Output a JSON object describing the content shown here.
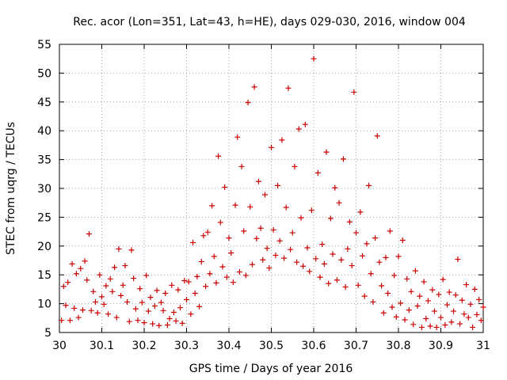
{
  "chart_data": {
    "type": "scatter",
    "title": "Rec. acor (Lon=351, Lat=43, h=HE), days 029-030, 2016, window 004",
    "xlabel": "GPS time / Days of year 2016",
    "ylabel": "STEC from uqrg / TECUs",
    "xlim": [
      30,
      31
    ],
    "ylim": [
      5,
      55
    ],
    "xticks": [
      "30",
      "30.1",
      "30.2",
      "30.3",
      "30.4",
      "30.5",
      "30.6",
      "30.7",
      "30.8",
      "30.9",
      "31"
    ],
    "yticks": [
      "5",
      "10",
      "15",
      "20",
      "25",
      "30",
      "35",
      "40",
      "45",
      "50",
      "55"
    ],
    "grid": true,
    "marker": "+",
    "color": "#cc0000",
    "series": [
      {
        "points": [
          [
            30.005,
            7.1
          ],
          [
            30.01,
            13.0
          ],
          [
            30.015,
            9.7
          ],
          [
            30.02,
            13.7
          ],
          [
            30.025,
            7.1
          ],
          [
            30.03,
            16.9
          ],
          [
            30.035,
            9.2
          ],
          [
            30.04,
            15.2
          ],
          [
            30.045,
            7.6
          ],
          [
            30.05,
            16.1
          ],
          [
            30.055,
            8.9
          ],
          [
            30.06,
            17.4
          ],
          [
            30.065,
            14.1
          ],
          [
            30.07,
            22.1
          ],
          [
            30.075,
            8.8
          ],
          [
            30.08,
            12.1
          ],
          [
            30.085,
            10.3
          ],
          [
            30.09,
            8.4
          ],
          [
            30.095,
            15.0
          ],
          [
            30.1,
            11.2
          ],
          [
            30.105,
            9.9
          ],
          [
            30.11,
            13.1
          ],
          [
            30.115,
            8.2
          ],
          [
            30.12,
            14.3
          ],
          [
            30.125,
            12.1
          ],
          [
            30.13,
            16.3
          ],
          [
            30.135,
            7.6
          ],
          [
            30.14,
            19.5
          ],
          [
            30.145,
            11.4
          ],
          [
            30.15,
            13.2
          ],
          [
            30.155,
            16.6
          ],
          [
            30.16,
            10.3
          ],
          [
            30.165,
            6.9
          ],
          [
            30.17,
            19.3
          ],
          [
            30.175,
            14.4
          ],
          [
            30.18,
            9.1
          ],
          [
            30.185,
            7.1
          ],
          [
            30.19,
            12.6
          ],
          [
            30.195,
            10.2
          ],
          [
            30.2,
            6.7
          ],
          [
            30.205,
            14.9
          ],
          [
            30.21,
            8.7
          ],
          [
            30.215,
            11.1
          ],
          [
            30.22,
            6.5
          ],
          [
            30.225,
            9.6
          ],
          [
            30.23,
            12.3
          ],
          [
            30.235,
            6.2
          ],
          [
            30.24,
            10.2
          ],
          [
            30.245,
            8.8
          ],
          [
            30.25,
            11.8
          ],
          [
            30.255,
            6.3
          ],
          [
            30.26,
            7.4
          ],
          [
            30.265,
            13.2
          ],
          [
            30.27,
            8.5
          ],
          [
            30.275,
            7.0
          ],
          [
            30.28,
            12.4
          ],
          [
            30.285,
            9.3
          ],
          [
            30.29,
            6.6
          ],
          [
            30.295,
            14.0
          ],
          [
            30.3,
            10.7
          ],
          [
            30.305,
            13.8
          ],
          [
            30.31,
            8.2
          ],
          [
            30.315,
            20.6
          ],
          [
            30.32,
            11.8
          ],
          [
            30.325,
            14.7
          ],
          [
            30.33,
            9.5
          ],
          [
            30.335,
            17.3
          ],
          [
            30.34,
            21.8
          ],
          [
            30.345,
            13.0
          ],
          [
            30.35,
            22.4
          ],
          [
            30.355,
            15.2
          ],
          [
            30.36,
            27.0
          ],
          [
            30.365,
            18.2
          ],
          [
            30.37,
            13.6
          ],
          [
            30.375,
            35.6
          ],
          [
            30.38,
            24.1
          ],
          [
            30.385,
            16.4
          ],
          [
            30.39,
            30.2
          ],
          [
            30.395,
            14.6
          ],
          [
            30.4,
            21.4
          ],
          [
            30.405,
            18.8
          ],
          [
            30.41,
            13.7
          ],
          [
            30.415,
            27.1
          ],
          [
            30.42,
            38.9
          ],
          [
            30.425,
            15.5
          ],
          [
            30.43,
            33.8
          ],
          [
            30.435,
            22.6
          ],
          [
            30.44,
            14.9
          ],
          [
            30.445,
            44.9
          ],
          [
            30.45,
            26.8
          ],
          [
            30.455,
            16.8
          ],
          [
            30.46,
            47.6
          ],
          [
            30.465,
            21.3
          ],
          [
            30.47,
            31.2
          ],
          [
            30.475,
            23.1
          ],
          [
            30.48,
            17.6
          ],
          [
            30.485,
            28.9
          ],
          [
            30.49,
            19.6
          ],
          [
            30.495,
            16.2
          ],
          [
            30.5,
            37.1
          ],
          [
            30.505,
            22.8
          ],
          [
            30.51,
            18.4
          ],
          [
            30.515,
            30.5
          ],
          [
            30.52,
            20.9
          ],
          [
            30.525,
            38.4
          ],
          [
            30.53,
            17.9
          ],
          [
            30.535,
            26.7
          ],
          [
            30.54,
            47.4
          ],
          [
            30.545,
            19.4
          ],
          [
            30.55,
            22.3
          ],
          [
            30.555,
            33.8
          ],
          [
            30.56,
            17.2
          ],
          [
            30.565,
            40.3
          ],
          [
            30.57,
            24.9
          ],
          [
            30.575,
            16.5
          ],
          [
            30.58,
            41.1
          ],
          [
            30.585,
            19.7
          ],
          [
            30.59,
            15.6
          ],
          [
            30.595,
            26.2
          ],
          [
            30.6,
            52.5
          ],
          [
            30.605,
            17.8
          ],
          [
            30.61,
            32.7
          ],
          [
            30.615,
            14.6
          ],
          [
            30.62,
            20.3
          ],
          [
            30.625,
            16.9
          ],
          [
            30.63,
            36.3
          ],
          [
            30.635,
            13.5
          ],
          [
            30.64,
            24.8
          ],
          [
            30.645,
            18.6
          ],
          [
            30.65,
            30.1
          ],
          [
            30.655,
            14.1
          ],
          [
            30.66,
            27.5
          ],
          [
            30.665,
            17.6
          ],
          [
            30.67,
            35.1
          ],
          [
            30.675,
            12.9
          ],
          [
            30.68,
            19.5
          ],
          [
            30.685,
            24.2
          ],
          [
            30.69,
            16.6
          ],
          [
            30.695,
            46.7
          ],
          [
            30.7,
            22.3
          ],
          [
            30.705,
            13.2
          ],
          [
            30.71,
            25.9
          ],
          [
            30.715,
            18.3
          ],
          [
            30.72,
            11.3
          ],
          [
            30.725,
            20.4
          ],
          [
            30.73,
            30.5
          ],
          [
            30.735,
            15.2
          ],
          [
            30.74,
            10.3
          ],
          [
            30.745,
            21.4
          ],
          [
            30.75,
            39.1
          ],
          [
            30.755,
            17.2
          ],
          [
            30.76,
            13.1
          ],
          [
            30.765,
            8.4
          ],
          [
            30.77,
            18.0
          ],
          [
            30.775,
            11.8
          ],
          [
            30.78,
            22.6
          ],
          [
            30.785,
            9.4
          ],
          [
            30.79,
            14.9
          ],
          [
            30.795,
            7.7
          ],
          [
            30.8,
            18.2
          ],
          [
            30.805,
            10.1
          ],
          [
            30.81,
            21.0
          ],
          [
            30.815,
            7.2
          ],
          [
            30.82,
            14.3
          ],
          [
            30.825,
            8.9
          ],
          [
            30.83,
            12.1
          ],
          [
            30.835,
            6.4
          ],
          [
            30.84,
            15.7
          ],
          [
            30.845,
            9.6
          ],
          [
            30.85,
            11.3
          ],
          [
            30.855,
            5.9
          ],
          [
            30.86,
            13.8
          ],
          [
            30.865,
            7.4
          ],
          [
            30.87,
            10.5
          ],
          [
            30.875,
            6.1
          ],
          [
            30.88,
            12.4
          ],
          [
            30.885,
            8.7
          ],
          [
            30.89,
            5.9
          ],
          [
            30.895,
            11.6
          ],
          [
            30.9,
            7.6
          ],
          [
            30.905,
            14.2
          ],
          [
            30.91,
            6.3
          ],
          [
            30.915,
            9.8
          ],
          [
            30.92,
            12.0
          ],
          [
            30.925,
            6.8
          ],
          [
            30.93,
            8.7
          ],
          [
            30.935,
            11.5
          ],
          [
            30.94,
            17.7
          ],
          [
            30.945,
            6.5
          ],
          [
            30.95,
            10.6
          ],
          [
            30.955,
            8.2
          ],
          [
            30.96,
            13.3
          ],
          [
            30.965,
            7.6
          ],
          [
            30.97,
            9.9
          ],
          [
            30.975,
            5.9
          ],
          [
            30.98,
            12.5
          ],
          [
            30.985,
            8.1
          ],
          [
            30.99,
            10.7
          ],
          [
            30.995,
            7.1
          ],
          [
            31.0,
            9.4
          ]
        ]
      }
    ]
  }
}
